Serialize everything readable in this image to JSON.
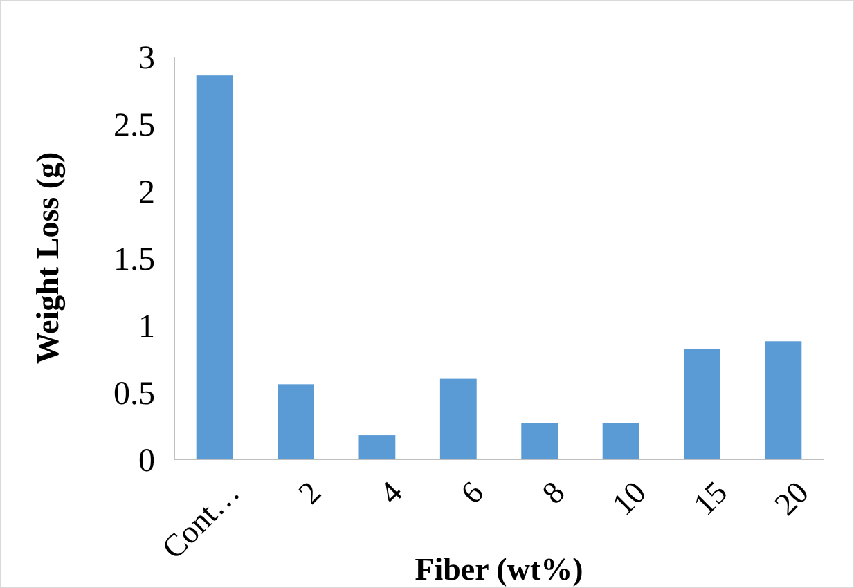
{
  "chart_data": {
    "type": "bar",
    "xlabel": "Fiber (wt%)",
    "ylabel": "Weight Loss (g)",
    "categories": [
      "Cont…",
      "2",
      "4",
      "6",
      "8",
      "10",
      "15",
      "20"
    ],
    "values": [
      2.86,
      0.56,
      0.18,
      0.6,
      0.27,
      0.27,
      0.82,
      0.88
    ],
    "color": "#5b9bd5",
    "ylim": [
      0,
      3
    ],
    "yticks": [
      0,
      0.5,
      1,
      1.5,
      2,
      2.5,
      3
    ],
    "grid": false
  }
}
